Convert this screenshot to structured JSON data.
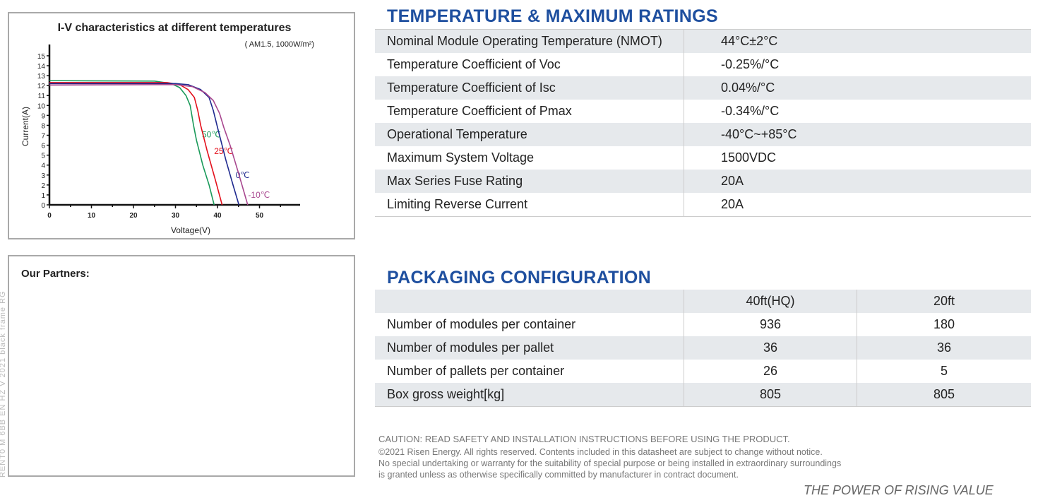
{
  "side_text": "RENT0 M 6BB EN HZ V 2021 black frame RG",
  "chart_data": {
    "type": "line",
    "title": "I-V characteristics at different temperatures",
    "subtitle": "( AM1.5, 1000W/m²)",
    "xlabel": "Voltage(V)",
    "ylabel": "Current(A)",
    "xlim": [
      0,
      60
    ],
    "ylim": [
      0,
      16
    ],
    "xticks": [
      0,
      10,
      20,
      30,
      40,
      50
    ],
    "yticks": [
      0,
      1,
      2,
      3,
      4,
      5,
      6,
      7,
      8,
      9,
      10,
      11,
      12,
      13,
      14,
      15
    ],
    "grid": false,
    "series": [
      {
        "name": "50℃",
        "color": "#1a9a5a",
        "label_at": [
          36.3,
          6.8
        ],
        "points": [
          [
            0,
            12.5
          ],
          [
            25,
            12.45
          ],
          [
            29,
            12.2
          ],
          [
            31,
            11.8
          ],
          [
            32.5,
            11
          ],
          [
            33.5,
            10
          ],
          [
            34.3,
            8
          ],
          [
            35,
            6.5
          ],
          [
            36.5,
            4
          ],
          [
            38,
            2
          ],
          [
            39.2,
            0
          ]
        ]
      },
      {
        "name": "25℃",
        "color": "#e3101c",
        "label_at": [
          39.2,
          5.1
        ],
        "points": [
          [
            0,
            12.3
          ],
          [
            28,
            12.3
          ],
          [
            31,
            12.1
          ],
          [
            33,
            11.6
          ],
          [
            34.5,
            10.8
          ],
          [
            35.3,
            9.5
          ],
          [
            36,
            8
          ],
          [
            37.5,
            5.5
          ],
          [
            39.5,
            2.5
          ],
          [
            41.1,
            0
          ]
        ]
      },
      {
        "name": "0℃",
        "color": "#1f2a8f",
        "label_at": [
          44.3,
          2.7
        ],
        "points": [
          [
            0,
            12.2
          ],
          [
            30,
            12.2
          ],
          [
            33,
            12.1
          ],
          [
            36,
            11.6
          ],
          [
            38,
            10.8
          ],
          [
            39,
            9.5
          ],
          [
            40,
            7.8
          ],
          [
            42,
            4.5
          ],
          [
            43.7,
            2
          ],
          [
            45.1,
            0
          ]
        ]
      },
      {
        "name": "-10℃",
        "color": "#a8478f",
        "label_at": [
          47.3,
          0.7
        ],
        "points": [
          [
            0,
            12.05
          ],
          [
            30,
            12.1
          ],
          [
            34,
            11.9
          ],
          [
            37,
            11.3
          ],
          [
            39,
            10.5
          ],
          [
            40.5,
            9.2
          ],
          [
            41.5,
            7.8
          ],
          [
            43,
            6
          ],
          [
            45,
            3.2
          ],
          [
            47.2,
            0
          ]
        ]
      }
    ]
  },
  "partners": {
    "title": "Our Partners:"
  },
  "temperature": {
    "title": "TEMPERATURE & MAXIMUM RATINGS",
    "rows": [
      {
        "label": "Nominal Module Operating Temperature (NMOT)",
        "value": "44°C±2°C"
      },
      {
        "label": "Temperature Coefficient of Voc",
        "value": "-0.25%/°C"
      },
      {
        "label": "Temperature Coefficient of Isc",
        "value": "0.04%/°C"
      },
      {
        "label": "Temperature Coefficient of Pmax",
        "value": "-0.34%/°C"
      },
      {
        "label": "Operational Temperature",
        "value": "-40°C~+85°C"
      },
      {
        "label": "Maximum System Voltage",
        "value": "1500VDC"
      },
      {
        "label": "Max Series Fuse Rating",
        "value": "20A"
      },
      {
        "label": "Limiting Reverse Current",
        "value": "20A"
      }
    ]
  },
  "packaging": {
    "title": "PACKAGING CONFIGURATION",
    "headers": [
      "",
      "40ft(HQ)",
      "20ft"
    ],
    "rows": [
      [
        "Number of modules per container",
        "936",
        "180"
      ],
      [
        "Number of modules per pallet",
        "36",
        "36"
      ],
      [
        "Number of pallets per container",
        "26",
        "5"
      ],
      [
        "Box gross weight[kg]",
        "805",
        "805"
      ]
    ]
  },
  "footer": {
    "caution": "CAUTION: READ SAFETY AND INSTALLATION INSTRUCTIONS BEFORE USING THE PRODUCT.",
    "lines": [
      "©2021 Risen Energy. All rights reserved. Contents included in this datasheet are subject to change without notice.",
      "No special undertaking or warranty for the suitability of special purpose or being installed in extraordinary surroundings",
      "is granted unless as otherwise specifically committed by manufacturer in contract document."
    ],
    "slogan": "THE POWER OF RISING VALUE"
  }
}
